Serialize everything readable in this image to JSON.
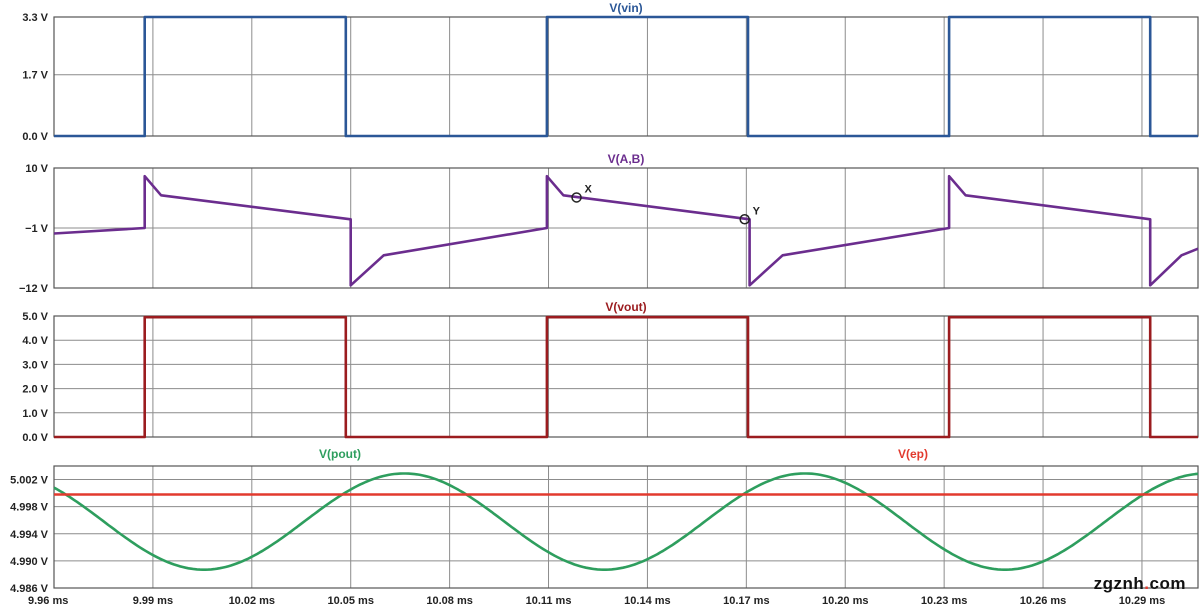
{
  "chart_data": [
    {
      "type": "line",
      "title": "V(vin)",
      "ylim": [
        0,
        3.3
      ],
      "yticks": [
        {
          "v": 0,
          "label": "0.0 V"
        },
        {
          "v": 1.7,
          "label": "1.7 V"
        },
        {
          "v": 3.3,
          "label": "3.3 V"
        }
      ],
      "series": [
        {
          "name": "V(vin)",
          "color": "#2b5797",
          "points": [
            [
              9.96,
              0
            ],
            [
              9.9875,
              0
            ],
            [
              9.9875,
              3.3
            ],
            [
              10.0485,
              3.3
            ],
            [
              10.0485,
              0
            ],
            [
              10.1095,
              0
            ],
            [
              10.1095,
              3.3
            ],
            [
              10.1705,
              3.3
            ],
            [
              10.1705,
              0
            ],
            [
              10.2315,
              0
            ],
            [
              10.2315,
              3.3
            ],
            [
              10.2925,
              3.3
            ],
            [
              10.2925,
              0
            ],
            [
              10.307,
              0
            ]
          ]
        }
      ]
    },
    {
      "type": "line",
      "title": "V(A,B)",
      "ylim": [
        -12,
        10
      ],
      "yticks": [
        {
          "v": -12,
          "label": "−12 V"
        },
        {
          "v": -1,
          "label": "−1 V"
        },
        {
          "v": 10,
          "label": "10 V"
        }
      ],
      "series": [
        {
          "name": "V(A,B)",
          "color": "#6b2d8e",
          "points": [
            [
              9.96,
              -2
            ],
            [
              9.9875,
              -1
            ],
            [
              9.9875,
              8.5
            ],
            [
              9.9925,
              5
            ],
            [
              10.05,
              0.6
            ],
            [
              10.05,
              -11.5
            ],
            [
              10.06,
              -6
            ],
            [
              10.1095,
              -1
            ],
            [
              10.1095,
              8.5
            ],
            [
              10.1145,
              5
            ],
            [
              10.171,
              0.6
            ],
            [
              10.171,
              -11.5
            ],
            [
              10.181,
              -6
            ],
            [
              10.2315,
              -1
            ],
            [
              10.2315,
              8.5
            ],
            [
              10.2365,
              5
            ],
            [
              10.2925,
              0.6
            ],
            [
              10.2925,
              -11.5
            ],
            [
              10.302,
              -6
            ],
            [
              10.307,
              -4.8
            ]
          ]
        }
      ],
      "markers": [
        {
          "label": "X",
          "x": 10.1185,
          "y": 4.6
        },
        {
          "label": "Y",
          "x": 10.1695,
          "y": 0.6
        }
      ]
    },
    {
      "type": "line",
      "title": "V(vout)",
      "ylim": [
        0,
        5
      ],
      "yticks": [
        {
          "v": 0,
          "label": "0.0 V"
        },
        {
          "v": 1,
          "label": "1.0 V"
        },
        {
          "v": 2,
          "label": "2.0 V"
        },
        {
          "v": 3,
          "label": "3.0 V"
        },
        {
          "v": 4,
          "label": "4.0 V"
        },
        {
          "v": 5,
          "label": "5.0 V"
        }
      ],
      "series": [
        {
          "name": "V(vout)",
          "color": "#9b1c1f",
          "points": [
            [
              9.96,
              0
            ],
            [
              9.9875,
              0
            ],
            [
              9.9875,
              4.95
            ],
            [
              10.0485,
              4.95
            ],
            [
              10.0485,
              0
            ],
            [
              10.1095,
              0
            ],
            [
              10.1095,
              4.95
            ],
            [
              10.1705,
              4.95
            ],
            [
              10.1705,
              0
            ],
            [
              10.2315,
              0
            ],
            [
              10.2315,
              4.95
            ],
            [
              10.2925,
              4.95
            ],
            [
              10.2925,
              0
            ],
            [
              10.307,
              0
            ]
          ]
        }
      ]
    },
    {
      "type": "line",
      "titles": [
        {
          "text": "V(pout)",
          "color": "#2e9e5e"
        },
        {
          "text": "V(ep)",
          "color": "#e23a2e"
        }
      ],
      "ylim": [
        4.986,
        5.004
      ],
      "yticks": [
        {
          "v": 4.986,
          "label": "4.986 V"
        },
        {
          "v": 4.99,
          "label": "4.990 V"
        },
        {
          "v": 4.994,
          "label": "4.994 V"
        },
        {
          "v": 4.998,
          "label": "4.998 V"
        },
        {
          "v": 5.002,
          "label": "5.002 V"
        }
      ],
      "series": [
        {
          "name": "V(pout)",
          "color": "#2e9e5e",
          "type": "sine",
          "offset": 4.9958,
          "amplitude": 0.0071,
          "period": 0.1215,
          "minAt": 10.0055
        },
        {
          "name": "V(ep)",
          "color": "#e23a2e",
          "type": "constant",
          "value": 4.9998
        }
      ]
    }
  ],
  "xaxis": {
    "xlim": [
      9.96,
      10.307
    ],
    "ticks": [
      {
        "v": 9.96,
        "label": "9.96 ms"
      },
      {
        "v": 9.99,
        "label": "9.99 ms"
      },
      {
        "v": 10.02,
        "label": "10.02 ms"
      },
      {
        "v": 10.05,
        "label": "10.05 ms"
      },
      {
        "v": 10.08,
        "label": "10.08 ms"
      },
      {
        "v": 10.11,
        "label": "10.11 ms"
      },
      {
        "v": 10.14,
        "label": "10.14 ms"
      },
      {
        "v": 10.17,
        "label": "10.17 ms"
      },
      {
        "v": 10.2,
        "label": "10.20 ms"
      },
      {
        "v": 10.23,
        "label": "10.23 ms"
      },
      {
        "v": 10.26,
        "label": "10.26 ms"
      },
      {
        "v": 10.29,
        "label": "10.29 ms"
      }
    ]
  },
  "watermark": {
    "part1": "zgznh",
    "dot": ".",
    "part2": "com"
  }
}
